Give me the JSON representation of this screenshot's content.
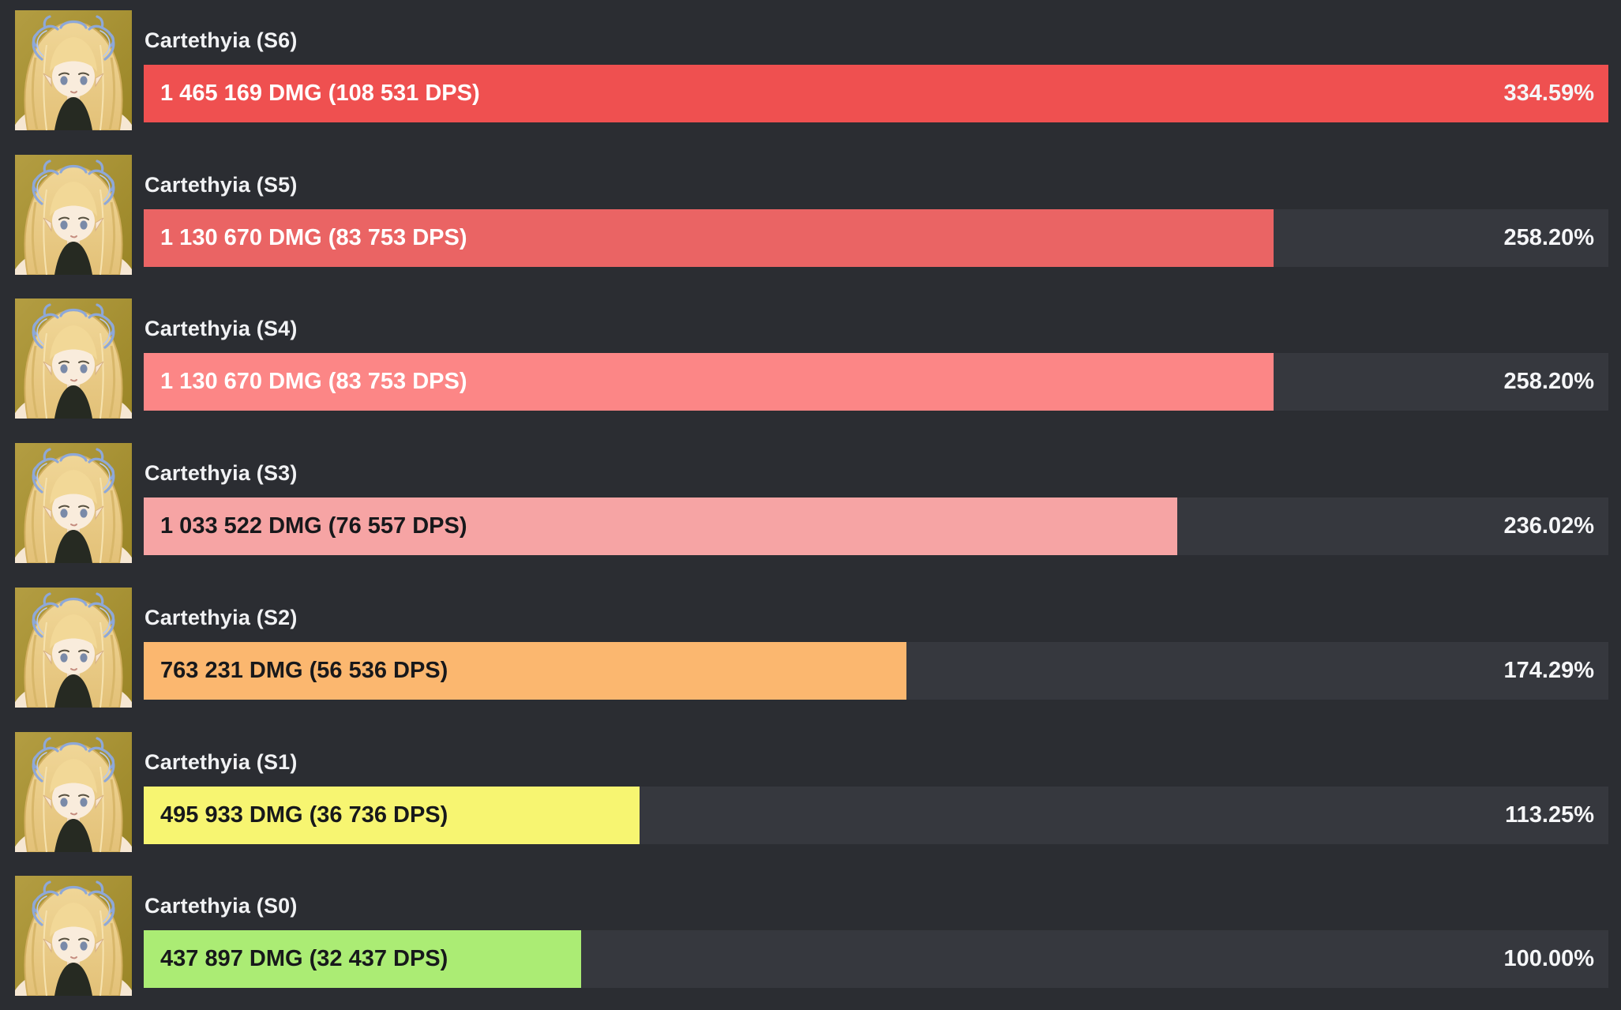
{
  "page": {
    "background_color": "#2b2d32",
    "track_color": "#36383e",
    "label_color": "#f1f2f4",
    "percent_color": "#f5f6f8"
  },
  "chart_data": {
    "type": "bar",
    "orientation": "horizontal",
    "grid": false,
    "legend": false,
    "xlim": [
      0,
      334.59
    ],
    "categories": [
      "Cartethyia (S6)",
      "Cartethyia (S5)",
      "Cartethyia (S4)",
      "Cartethyia (S3)",
      "Cartethyia (S2)",
      "Cartethyia (S1)",
      "Cartethyia (S0)"
    ],
    "series": [
      {
        "name": "percent_of_baseline",
        "values": [
          334.59,
          258.2,
          258.2,
          236.02,
          174.29,
          113.25,
          100.0
        ]
      },
      {
        "name": "damage",
        "values": [
          1465169,
          1130670,
          1130670,
          1033522,
          763231,
          495933,
          437897
        ]
      },
      {
        "name": "dps",
        "values": [
          108531,
          83753,
          83753,
          76557,
          56536,
          36736,
          32437
        ]
      }
    ],
    "rows": [
      {
        "label": "Cartethyia (S6)",
        "bar_label": "1 465 169 DMG (108 531 DPS)",
        "percent_label": "334.59%",
        "percent": 334.59,
        "bar_color": "#ef5050",
        "bar_text_color": "#ffffff"
      },
      {
        "label": "Cartethyia (S5)",
        "bar_label": "1 130 670 DMG (83 753 DPS)",
        "percent_label": "258.20%",
        "percent": 258.2,
        "bar_color": "#ea6464",
        "bar_text_color": "#ffffff"
      },
      {
        "label": "Cartethyia (S4)",
        "bar_label": "1 130 670 DMG (83 753 DPS)",
        "percent_label": "258.20%",
        "percent": 258.2,
        "bar_color": "#fc8686",
        "bar_text_color": "#ffffff"
      },
      {
        "label": "Cartethyia (S3)",
        "bar_label": "1 033 522 DMG (76 557 DPS)",
        "percent_label": "236.02%",
        "percent": 236.02,
        "bar_color": "#f6a4a4",
        "bar_text_color": "#17181b"
      },
      {
        "label": "Cartethyia (S2)",
        "bar_label": "763 231 DMG (56 536 DPS)",
        "percent_label": "174.29%",
        "percent": 174.29,
        "bar_color": "#fbb76f",
        "bar_text_color": "#17181b"
      },
      {
        "label": "Cartethyia (S1)",
        "bar_label": "495 933 DMG (36 736 DPS)",
        "percent_label": "113.25%",
        "percent": 113.25,
        "bar_color": "#f7f571",
        "bar_text_color": "#17181b"
      },
      {
        "label": "Cartethyia (S0)",
        "bar_label": "437 897 DMG (32 437 DPS)",
        "percent_label": "100.00%",
        "percent": 100.0,
        "bar_color": "#abec74",
        "bar_text_color": "#17181b"
      }
    ]
  }
}
